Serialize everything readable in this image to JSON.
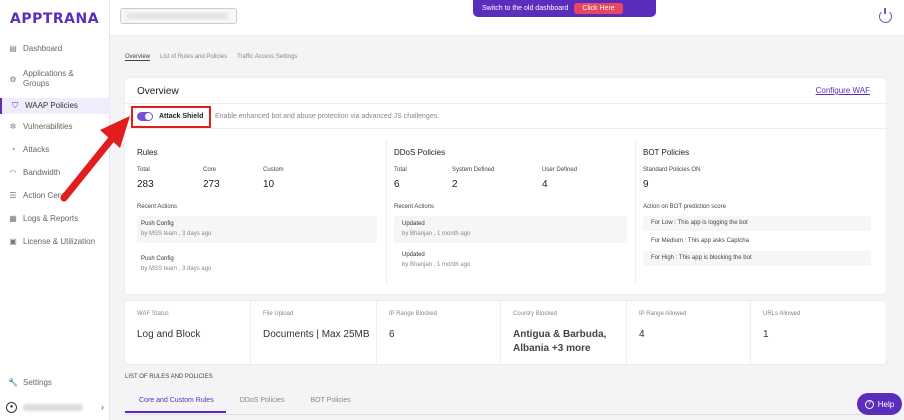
{
  "app": {
    "logo": "APPTRANA"
  },
  "sidebar": {
    "items": [
      {
        "label": "Dashboard",
        "icon": "dashboard-icon"
      },
      {
        "label": "Applications &",
        "label2": "Groups",
        "icon": "apps-icon"
      },
      {
        "label": "WAAP Policies",
        "icon": "shield-icon",
        "active": true
      },
      {
        "label": "Vulnerabilities",
        "icon": "bug-icon"
      },
      {
        "label": "Attacks",
        "icon": "attacks-icon"
      },
      {
        "label": "Bandwidth",
        "icon": "bandwidth-icon"
      },
      {
        "label": "Action Cent",
        "icon": "action-center-icon"
      },
      {
        "label": "Logs & Reports",
        "icon": "logs-icon"
      },
      {
        "label": "License & Utilization",
        "icon": "license-icon"
      }
    ],
    "settings": "Settings"
  },
  "topbar": {
    "banner_text": "Switch to the old dashboard",
    "banner_button": "Click Here"
  },
  "breadcrumb": [
    "Overview",
    "List of Rules and Policies",
    "Traffic Access Settings"
  ],
  "overview": {
    "title": "Overview",
    "configure_link": "Configure WAF",
    "attack_shield_label": "Attack Shield",
    "attack_shield_desc": "Enable enhanced bot and abuse protection via advanced JS challenges.",
    "attack_shield_on": true
  },
  "rules": {
    "title": "Rules",
    "labels": [
      "Total",
      "Core",
      "Custom"
    ],
    "values": [
      "283",
      "273",
      "10"
    ],
    "recent_label": "Recent Actions",
    "actions": [
      {
        "title": "Push Config",
        "sub": "by MSS team , 3 days ago"
      },
      {
        "title": "Push Config",
        "sub": "by MSS team , 3 days ago"
      }
    ]
  },
  "ddos": {
    "title": "DDoS Policies",
    "labels": [
      "Total",
      "System Defined",
      "User Defined"
    ],
    "values": [
      "6",
      "2",
      "4"
    ],
    "recent_label": "Recent Actions",
    "actions": [
      {
        "title": "Updated",
        "sub": "by Bhanjan , 1 month ago"
      },
      {
        "title": "Updated",
        "sub": "by Bhanjan , 1 month ago"
      }
    ]
  },
  "bot": {
    "title": "BOT Policies",
    "std_label": "Standard Policies ON",
    "std_value": "9",
    "action_label": "Action on BOT prediction score",
    "rows": [
      "For Low : This app is logging the bot",
      "For Medium : This app asks Captcha",
      "For High : This app is blocking the bot"
    ]
  },
  "stats": [
    {
      "label": "WAF Status",
      "value": "Log and Block"
    },
    {
      "label": "File Upload",
      "value": "Documents | Max 25MB"
    },
    {
      "label": "IP Range Blocked",
      "value": "6"
    },
    {
      "label": "Country Blocked",
      "value": "Antigua & Barbuda,",
      "value2": "Albania +3 more"
    },
    {
      "label": "IP Range Allowed",
      "value": "4"
    },
    {
      "label": "URLs Allowed",
      "value": "1"
    }
  ],
  "list": {
    "heading": "LIST OF RULES AND POLICIES",
    "tabs": [
      "Core and Custom Rules",
      "DDoS Policies",
      "BOT Policies"
    ]
  },
  "help": {
    "label": "Help"
  },
  "colors": {
    "brand": "#5b2dbd",
    "annotation": "#e11d1d",
    "banner_button": "#e8475f"
  }
}
